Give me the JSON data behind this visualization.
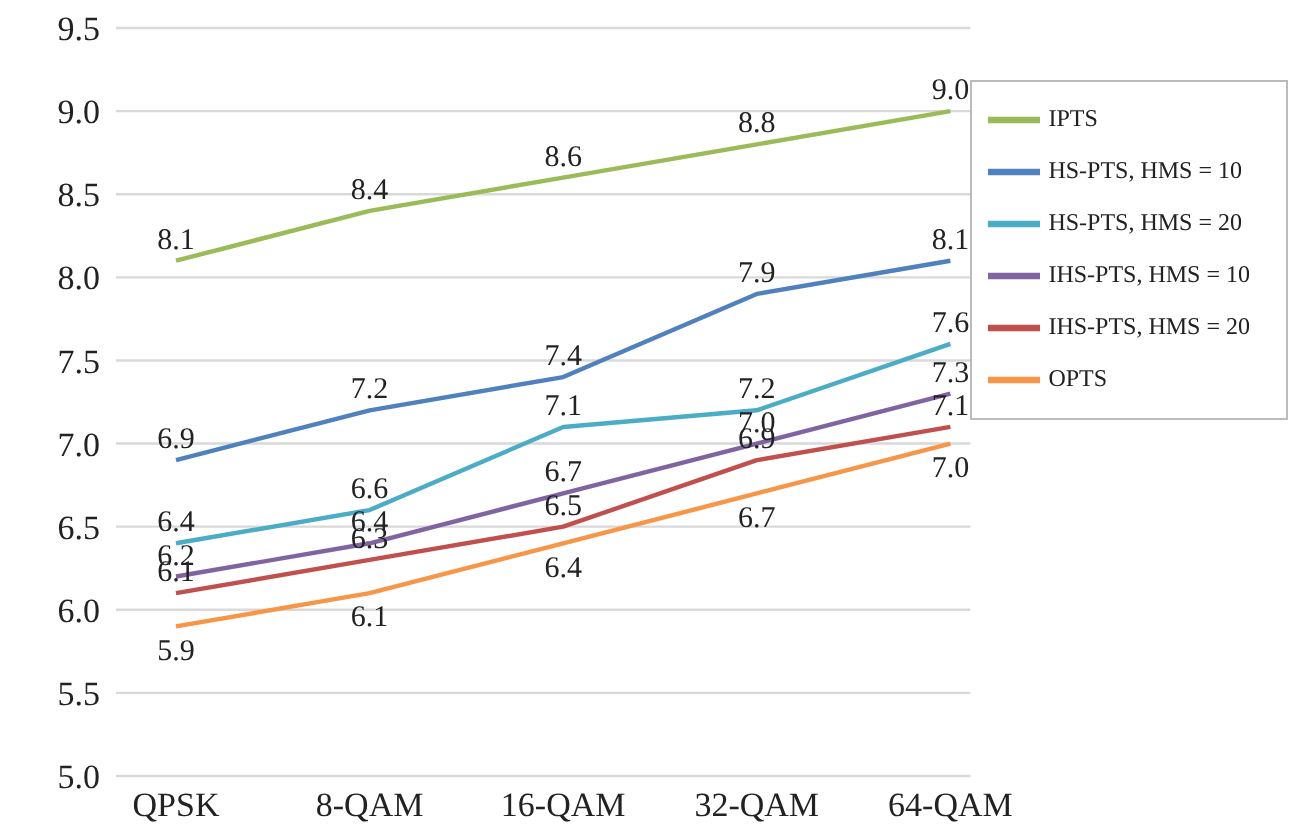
{
  "chart_data": {
    "type": "line",
    "categories": [
      "QPSK",
      "8-QAM",
      "16-QAM",
      "32-QAM",
      "64-QAM"
    ],
    "series": [
      {
        "name": "IPTS",
        "color": "#9bbb59",
        "values": [
          8.1,
          8.4,
          8.6,
          8.8,
          9.0
        ],
        "value_labels": [
          "8.1",
          "8.4",
          "8.6",
          "8.8",
          "9.0"
        ]
      },
      {
        "name": "HS-PTS, HMS = 10",
        "color": "#4f81bd",
        "values": [
          6.9,
          7.2,
          7.4,
          7.9,
          8.1
        ],
        "value_labels": [
          "6.9",
          "7.2",
          "7.4",
          "7.9",
          "8.1"
        ]
      },
      {
        "name": "HS-PTS, HMS = 20",
        "color": "#4bacc6",
        "values": [
          6.4,
          6.6,
          7.1,
          7.2,
          7.6
        ],
        "value_labels": [
          "6.4",
          "6.6",
          "7.1",
          "7.2",
          "7.6"
        ]
      },
      {
        "name": "IHS-PTS, HMS = 10",
        "color": "#8064a2",
        "values": [
          6.2,
          6.4,
          6.7,
          7.0,
          7.3
        ],
        "value_labels": [
          "6.2",
          "6.4",
          "6.7",
          "7.0",
          "7.3"
        ]
      },
      {
        "name": "IHS-PTS, HMS = 20",
        "color": "#c0504d",
        "values": [
          6.1,
          6.3,
          6.5,
          6.9,
          7.1
        ],
        "value_labels": [
          "6.1",
          "6.3",
          "6.5",
          "6.9",
          "7.1"
        ]
      },
      {
        "name": "OPTS",
        "color": "#f79646",
        "values": [
          5.9,
          6.1,
          6.4,
          6.7,
          7.0
        ],
        "value_labels": [
          "5.9",
          "6.1",
          "6.4",
          "6.7",
          "7.0"
        ]
      }
    ],
    "ylim": [
      5.0,
      9.5
    ],
    "yticks": [
      {
        "value": 5,
        "label": "5.0"
      },
      5.5,
      {
        "value": 6,
        "label": "6.0"
      },
      6.5,
      {
        "value": 7,
        "label": "7.0"
      },
      7.5,
      {
        "value": 8,
        "label": "8.0"
      },
      8.5,
      {
        "value": 9,
        "label": "9.0"
      },
      9.5
    ],
    "grid": "y",
    "legend": "top right",
    "marker": "none",
    "line_style": "solid"
  }
}
